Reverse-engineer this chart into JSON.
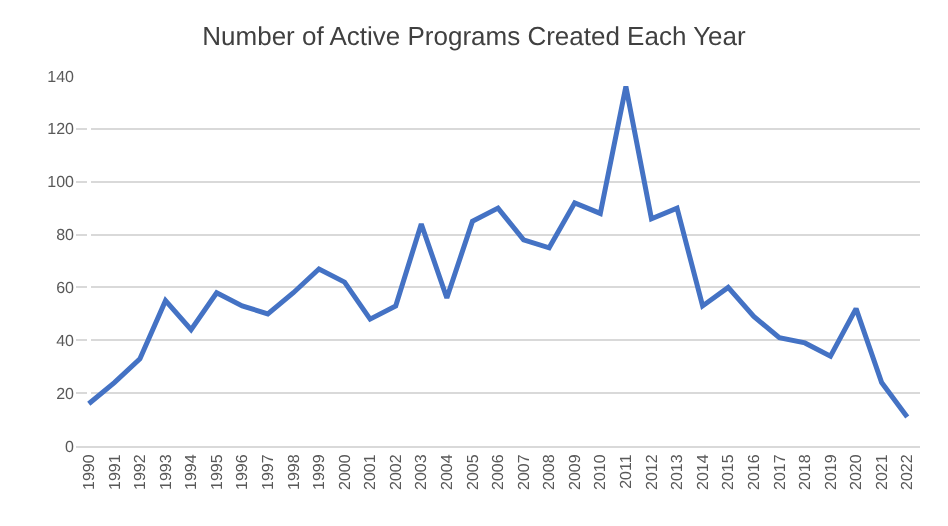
{
  "chart_data": {
    "type": "line",
    "title": "Number of Active Programs Created Each Year",
    "categories": [
      "1990",
      "1991",
      "1992",
      "1993",
      "1994",
      "1995",
      "1996",
      "1997",
      "1998",
      "1999",
      "2000",
      "2001",
      "2002",
      "2003",
      "2004",
      "2005",
      "2006",
      "2007",
      "2008",
      "2009",
      "2010",
      "2011",
      "2012",
      "2013",
      "2014",
      "2015",
      "2016",
      "2017",
      "2018",
      "2019",
      "2020",
      "2021",
      "2022"
    ],
    "series": [
      {
        "color": "#4472c4",
        "values": [
          16,
          24,
          33,
          55,
          44,
          58,
          53,
          50,
          58,
          67,
          62,
          48,
          53,
          84,
          56,
          85,
          90,
          78,
          75,
          92,
          88,
          136,
          86,
          90,
          53,
          60,
          49,
          41,
          39,
          34,
          52,
          24,
          11
        ]
      }
    ],
    "ylim": [
      0,
      140
    ],
    "yticks": [
      0,
      20,
      40,
      60,
      80,
      100,
      120,
      140
    ],
    "grid": "y",
    "marker": "none",
    "line_style": "solid"
  }
}
